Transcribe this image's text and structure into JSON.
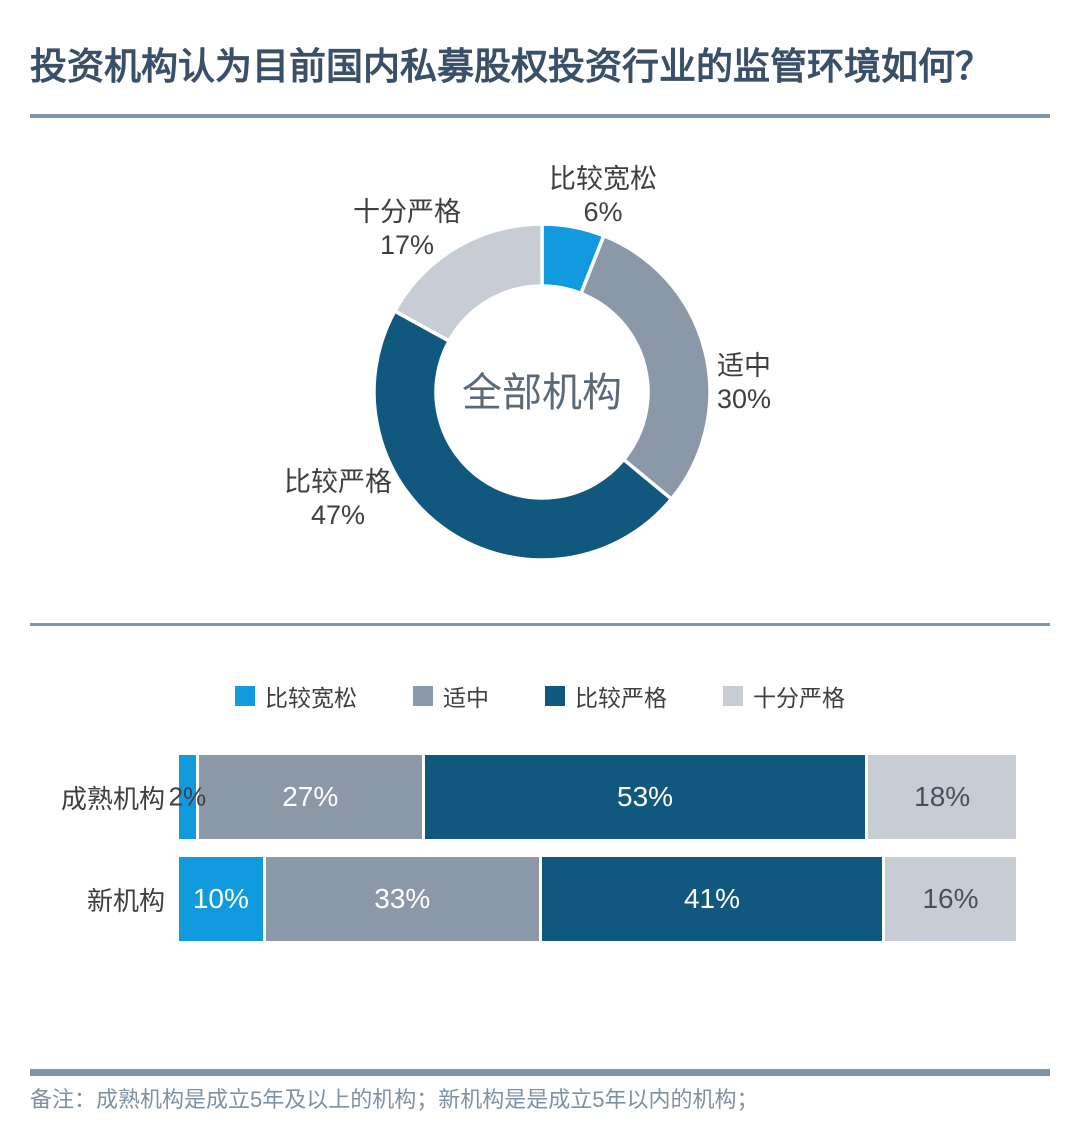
{
  "title": "投资机构认为目前国内私募股权投资行业的监管环境如何？",
  "note": "备注：成熟机构是成立5年及以上的机构；新机构是是成立5年以内的机构；",
  "colors": {
    "title_text": "#3A5068",
    "rule": "#8195A8",
    "label_text": "#3F3F3F",
    "center_text": "#5C6A77",
    "note_text": "#7E91A5",
    "series": [
      "#119BDE",
      "#8B98A7",
      "#11587E",
      "#C8CDD5"
    ],
    "bar_label_colors": [
      "#FFFFFF",
      "#FFFFFF",
      "#FFFFFF",
      "#45525F"
    ]
  },
  "chart_data": [
    {
      "type": "pie",
      "subtype": "donut",
      "center_label": "全部机构",
      "labels": [
        "比较宽松",
        "适中",
        "比较严格",
        "十分严格"
      ],
      "values": [
        6,
        30,
        47,
        17
      ],
      "unit": "%",
      "start_angle_deg": 0,
      "direction": "clockwise",
      "callout_labels": true
    },
    {
      "type": "bar",
      "subtype": "horizontal-stacked",
      "categories": [
        "成熟机构",
        "新机构"
      ],
      "series": [
        {
          "name": "比较宽松",
          "values": [
            2,
            10
          ]
        },
        {
          "name": "适中",
          "values": [
            27,
            33
          ]
        },
        {
          "name": "比较严格",
          "values": [
            53,
            41
          ]
        },
        {
          "name": "十分严格",
          "values": [
            18,
            16
          ]
        }
      ],
      "unit": "%",
      "xlim": [
        0,
        100
      ],
      "legend_position": "top",
      "value_labels": "inside"
    }
  ]
}
